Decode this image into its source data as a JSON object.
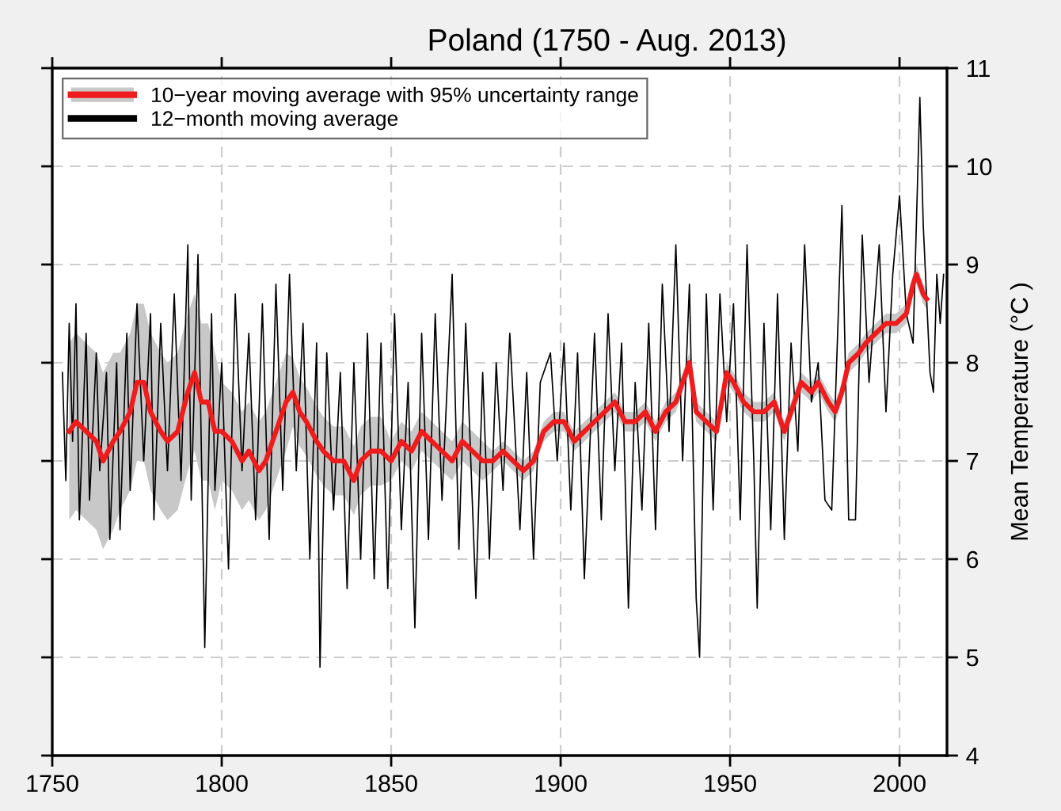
{
  "chart_data": {
    "type": "line",
    "title": "Poland (1750 - Aug. 2013)",
    "ylabel": "Mean Temperature (°C )",
    "xlim": [
      1750,
      2014
    ],
    "xticks": [
      1750,
      1800,
      1850,
      1900,
      1950,
      2000
    ],
    "ylim": [
      4,
      11
    ],
    "yticks": [
      4,
      5,
      6,
      7,
      8,
      9,
      10,
      11
    ],
    "grid": true,
    "legend": "top left",
    "marker": "none",
    "line_style": "solid",
    "series": [
      {
        "name": "10−year moving average with 95% uncertainty range",
        "color": "#ee1c1c",
        "x": [
          1755,
          1757,
          1760,
          1763,
          1765,
          1768,
          1770,
          1773,
          1775,
          1777,
          1779,
          1782,
          1784,
          1787,
          1790,
          1792,
          1794,
          1796,
          1798,
          1800,
          1803,
          1806,
          1808,
          1811,
          1813,
          1816,
          1819,
          1821,
          1823,
          1825,
          1828,
          1830,
          1833,
          1836,
          1839,
          1841,
          1844,
          1847,
          1850,
          1853,
          1856,
          1859,
          1862,
          1865,
          1868,
          1871,
          1874,
          1877,
          1880,
          1883,
          1886,
          1889,
          1892,
          1895,
          1898,
          1901,
          1904,
          1907,
          1910,
          1913,
          1916,
          1919,
          1922,
          1925,
          1928,
          1931,
          1934,
          1937,
          1938,
          1940,
          1943,
          1946,
          1949,
          1951,
          1954,
          1957,
          1960,
          1963,
          1966,
          1969,
          1971,
          1974,
          1976,
          1979,
          1981,
          1983,
          1985,
          1988,
          1990,
          1993,
          1996,
          1999,
          2002,
          2004,
          2005,
          2007,
          2008
        ],
        "values": [
          7.3,
          7.4,
          7.3,
          7.2,
          7.0,
          7.2,
          7.3,
          7.5,
          7.8,
          7.8,
          7.5,
          7.3,
          7.2,
          7.3,
          7.7,
          7.9,
          7.6,
          7.6,
          7.3,
          7.3,
          7.2,
          7.0,
          7.1,
          6.9,
          7.0,
          7.3,
          7.6,
          7.7,
          7.5,
          7.4,
          7.2,
          7.1,
          7.0,
          7.0,
          6.8,
          7.0,
          7.1,
          7.1,
          7.0,
          7.2,
          7.1,
          7.3,
          7.2,
          7.1,
          7.0,
          7.2,
          7.1,
          7.0,
          7.0,
          7.1,
          7.0,
          6.9,
          7.0,
          7.3,
          7.4,
          7.4,
          7.2,
          7.3,
          7.4,
          7.5,
          7.6,
          7.4,
          7.4,
          7.5,
          7.3,
          7.5,
          7.6,
          7.9,
          8.0,
          7.5,
          7.4,
          7.3,
          7.9,
          7.8,
          7.6,
          7.5,
          7.5,
          7.6,
          7.3,
          7.6,
          7.8,
          7.7,
          7.8,
          7.6,
          7.5,
          7.7,
          8.0,
          8.1,
          8.2,
          8.3,
          8.4,
          8.4,
          8.5,
          8.8,
          8.9,
          8.7,
          8.65
        ],
        "lower": [
          6.4,
          6.5,
          6.4,
          6.3,
          6.1,
          6.3,
          6.5,
          6.7,
          7.0,
          7.0,
          6.7,
          6.5,
          6.4,
          6.5,
          6.9,
          7.1,
          6.8,
          6.8,
          6.5,
          6.8,
          6.7,
          6.5,
          6.6,
          6.4,
          6.5,
          6.8,
          7.1,
          7.35,
          7.15,
          7.05,
          6.85,
          6.75,
          6.65,
          6.65,
          6.45,
          6.65,
          6.75,
          6.75,
          6.8,
          7.0,
          6.9,
          7.1,
          7.0,
          6.9,
          6.8,
          7.0,
          6.9,
          6.8,
          6.9,
          7.0,
          6.9,
          6.8,
          6.9,
          7.2,
          7.3,
          7.3,
          7.1,
          7.2,
          7.3,
          7.4,
          7.5,
          7.3,
          7.3,
          7.4,
          7.2,
          7.4,
          7.5,
          7.8,
          7.9,
          7.4,
          7.3,
          7.2,
          7.8,
          7.7,
          7.5,
          7.4,
          7.4,
          7.5,
          7.2,
          7.5,
          7.7,
          7.6,
          7.7,
          7.5,
          7.4,
          7.6,
          7.9,
          8.0,
          8.1,
          8.2,
          8.3,
          8.3,
          8.4,
          8.7,
          8.8,
          8.6,
          8.55
        ],
        "upper": [
          8.2,
          8.3,
          8.2,
          8.1,
          7.9,
          8.1,
          8.1,
          8.3,
          8.6,
          8.6,
          8.3,
          8.1,
          8.0,
          8.1,
          8.5,
          8.7,
          8.4,
          8.4,
          8.1,
          7.8,
          7.7,
          7.5,
          7.6,
          7.4,
          7.5,
          7.8,
          8.1,
          8.05,
          7.85,
          7.75,
          7.55,
          7.45,
          7.35,
          7.35,
          7.15,
          7.35,
          7.45,
          7.45,
          7.2,
          7.4,
          7.3,
          7.5,
          7.4,
          7.3,
          7.2,
          7.4,
          7.3,
          7.2,
          7.1,
          7.2,
          7.1,
          7.0,
          7.1,
          7.4,
          7.5,
          7.5,
          7.3,
          7.4,
          7.5,
          7.6,
          7.7,
          7.5,
          7.5,
          7.6,
          7.4,
          7.6,
          7.7,
          8.0,
          8.1,
          7.6,
          7.5,
          7.4,
          8.0,
          7.9,
          7.7,
          7.6,
          7.6,
          7.7,
          7.4,
          7.7,
          7.9,
          7.8,
          7.9,
          7.7,
          7.6,
          7.8,
          8.1,
          8.2,
          8.3,
          8.4,
          8.5,
          8.5,
          8.6,
          8.9,
          9.0,
          8.8,
          8.75
        ]
      },
      {
        "name": "12−month moving average",
        "color": "#000000",
        "x": [
          1753,
          1754,
          1755,
          1756,
          1757,
          1758,
          1760,
          1761,
          1763,
          1764,
          1766,
          1767,
          1769,
          1770,
          1772,
          1773,
          1775,
          1777,
          1779,
          1780,
          1782,
          1784,
          1786,
          1788,
          1790,
          1791,
          1793,
          1795,
          1797,
          1798,
          1800,
          1802,
          1804,
          1806,
          1808,
          1810,
          1812,
          1814,
          1816,
          1818,
          1820,
          1822,
          1824,
          1826,
          1828,
          1829,
          1831,
          1833,
          1835,
          1837,
          1839,
          1841,
          1843,
          1845,
          1847,
          1849,
          1851,
          1853,
          1855,
          1857,
          1859,
          1861,
          1863,
          1865,
          1868,
          1870,
          1872,
          1875,
          1877,
          1879,
          1881,
          1883,
          1885,
          1888,
          1890,
          1892,
          1894,
          1897,
          1899,
          1901,
          1903,
          1905,
          1907,
          1910,
          1912,
          1914,
          1916,
          1918,
          1920,
          1922,
          1924,
          1926,
          1928,
          1930,
          1932,
          1934,
          1936,
          1938,
          1940,
          1941,
          1943,
          1945,
          1947,
          1949,
          1951,
          1953,
          1955,
          1957,
          1958,
          1960,
          1962,
          1964,
          1966,
          1968,
          1970,
          1972,
          1974,
          1976,
          1978,
          1980,
          1983,
          1985,
          1987,
          1989,
          1991,
          1994,
          1996,
          1998,
          2000,
          2002,
          2004,
          2006,
          2007,
          2009,
          2010,
          2011,
          2012,
          2013
        ],
        "values": [
          7.9,
          6.8,
          8.4,
          7.2,
          8.6,
          6.4,
          8.3,
          6.6,
          8.1,
          6.9,
          7.9,
          6.2,
          8.0,
          6.3,
          8.3,
          6.7,
          8.6,
          7.0,
          8.5,
          6.4,
          8.4,
          6.9,
          8.7,
          6.8,
          9.2,
          6.6,
          9.1,
          5.1,
          8.5,
          6.7,
          8.0,
          5.9,
          8.7,
          6.9,
          8.3,
          6.4,
          8.6,
          6.2,
          8.8,
          6.7,
          8.9,
          6.9,
          8.4,
          6.0,
          8.2,
          4.9,
          8.1,
          6.5,
          7.9,
          5.7,
          8.0,
          6.0,
          8.3,
          5.8,
          8.2,
          5.7,
          8.5,
          6.3,
          7.8,
          5.3,
          8.3,
          6.2,
          8.5,
          6.6,
          8.9,
          6.1,
          8.4,
          5.6,
          7.9,
          6.0,
          8.0,
          6.7,
          8.3,
          6.3,
          7.9,
          6.0,
          7.8,
          8.1,
          7.0,
          8.2,
          6.5,
          8.1,
          5.8,
          8.3,
          6.4,
          8.5,
          6.9,
          8.2,
          5.5,
          7.8,
          6.5,
          8.4,
          6.3,
          8.8,
          7.3,
          9.2,
          7.0,
          8.8,
          5.6,
          5.0,
          8.7,
          6.5,
          8.7,
          7.4,
          8.6,
          6.4,
          9.2,
          7.0,
          5.5,
          8.4,
          6.3,
          8.7,
          6.2,
          8.2,
          7.1,
          9.2,
          7.6,
          8.0,
          6.6,
          6.5,
          9.6,
          6.4,
          6.4,
          9.3,
          7.8,
          9.2,
          7.5,
          8.9,
          9.7,
          8.5,
          8.2,
          10.7,
          9.4,
          7.9,
          7.7,
          8.9,
          8.4,
          8.9
        ]
      }
    ]
  }
}
